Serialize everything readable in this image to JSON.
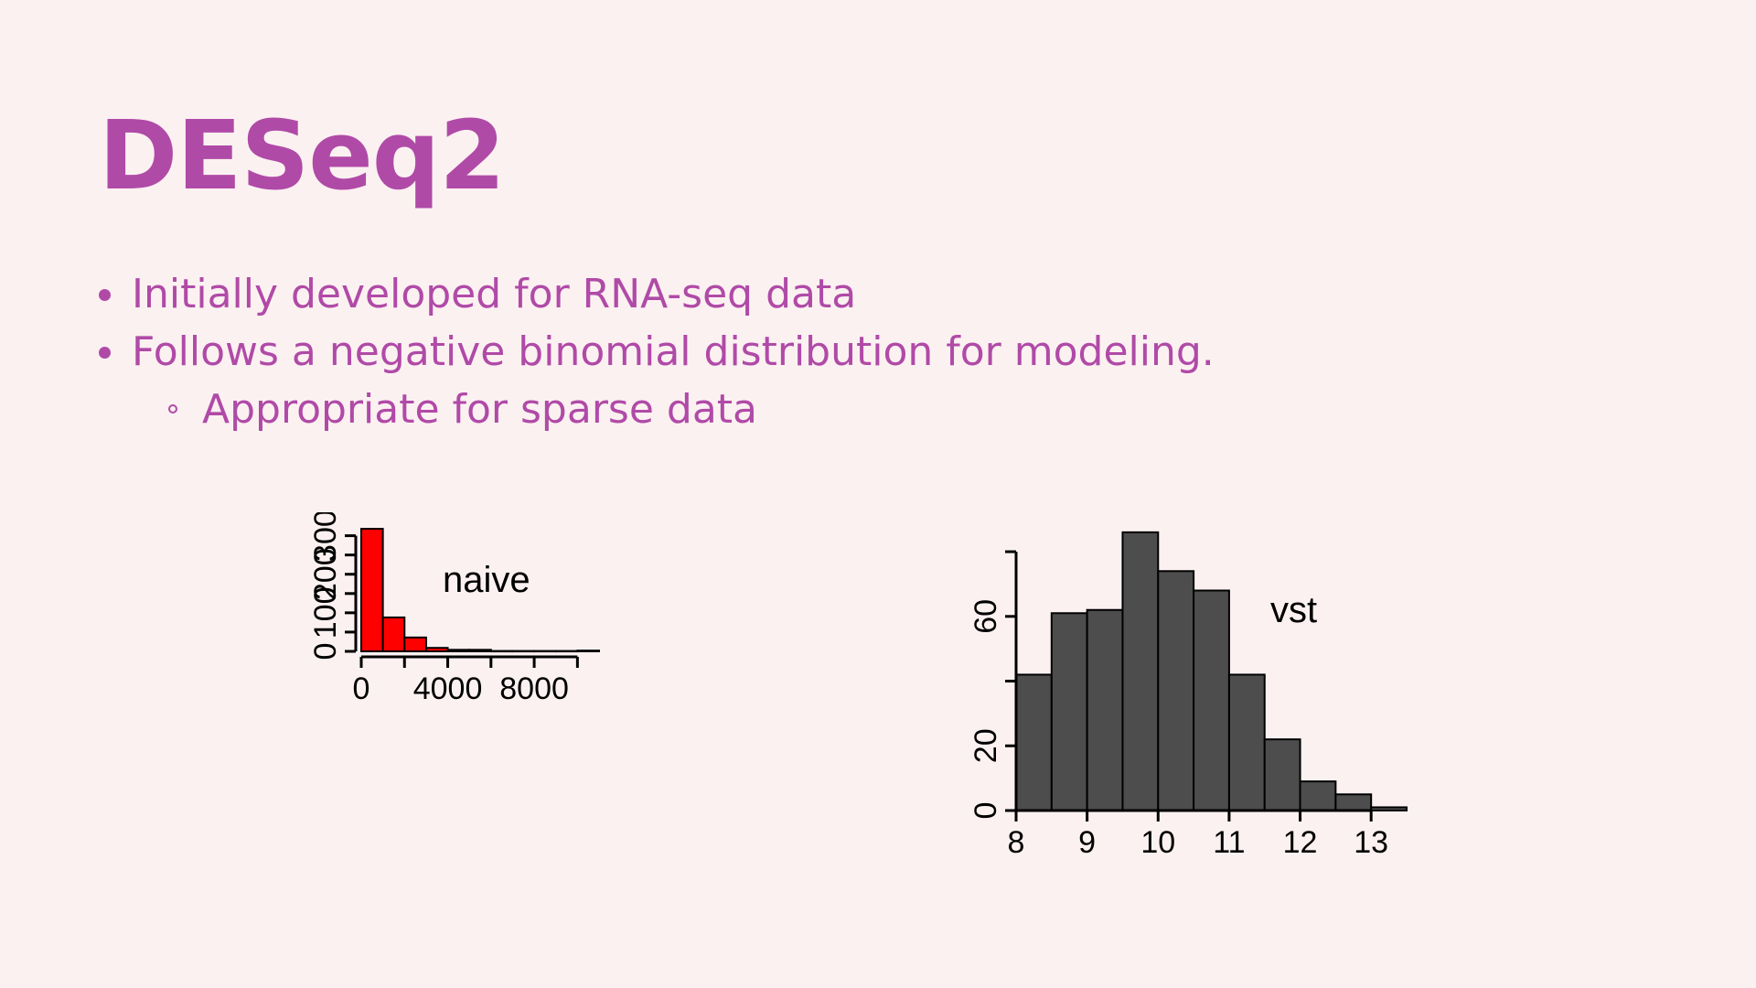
{
  "slide": {
    "title": "DESeq2",
    "bullets": [
      "Initially developed for RNA-seq data",
      "Follows a negative binomial distribution for modeling."
    ],
    "sub_bullets": [
      "Appropriate for sparse data"
    ]
  },
  "colors": {
    "background": "#fcf1f1",
    "accent": "#b04aa7",
    "naive_bar": "#ff0000",
    "vst_bar": "#4d4d4d"
  },
  "chart_data": [
    {
      "type": "bar",
      "title": "",
      "annotation": "naive",
      "xlabel": "",
      "ylabel": "",
      "bin_edges": [
        0,
        1000,
        2000,
        3000,
        4000,
        5000,
        6000,
        7000,
        8000,
        9000,
        10000,
        11000
      ],
      "values": [
        318,
        88,
        36,
        9,
        4,
        4,
        1,
        1,
        1,
        1,
        2
      ],
      "xlim": [
        0,
        11000
      ],
      "ylim": [
        0,
        318
      ],
      "x_ticks": [
        0,
        2000,
        4000,
        6000,
        8000,
        10000
      ],
      "x_tick_labels": [
        "0",
        "4000",
        "8000"
      ],
      "x_tick_label_values": [
        0,
        4000,
        8000
      ],
      "y_ticks": [
        0,
        50,
        100,
        150,
        200,
        250,
        300
      ],
      "y_tick_labels": [
        "0",
        "100",
        "200",
        "300"
      ],
      "y_tick_label_values": [
        0,
        100,
        200,
        300
      ],
      "grid": false
    },
    {
      "type": "bar",
      "title": "",
      "annotation": "vst",
      "xlabel": "",
      "ylabel": "",
      "bin_edges": [
        8,
        8.5,
        9,
        9.5,
        10,
        10.5,
        11,
        11.5,
        12,
        12.5,
        13,
        13.5
      ],
      "values": [
        42,
        61,
        62,
        86,
        74,
        68,
        42,
        22,
        9,
        5,
        1
      ],
      "xlim": [
        8,
        13.5
      ],
      "ylim": [
        0,
        82
      ],
      "x_ticks": [
        8,
        9,
        10,
        11,
        12,
        13
      ],
      "x_tick_labels": [
        "8",
        "9",
        "10",
        "11",
        "12",
        "13"
      ],
      "x_tick_label_values": [
        8,
        9,
        10,
        11,
        12,
        13
      ],
      "y_ticks": [
        0,
        20,
        40,
        60,
        80
      ],
      "y_tick_labels": [
        "0",
        "20",
        "60"
      ],
      "y_tick_label_values": [
        0,
        20,
        60
      ],
      "grid": false
    }
  ]
}
